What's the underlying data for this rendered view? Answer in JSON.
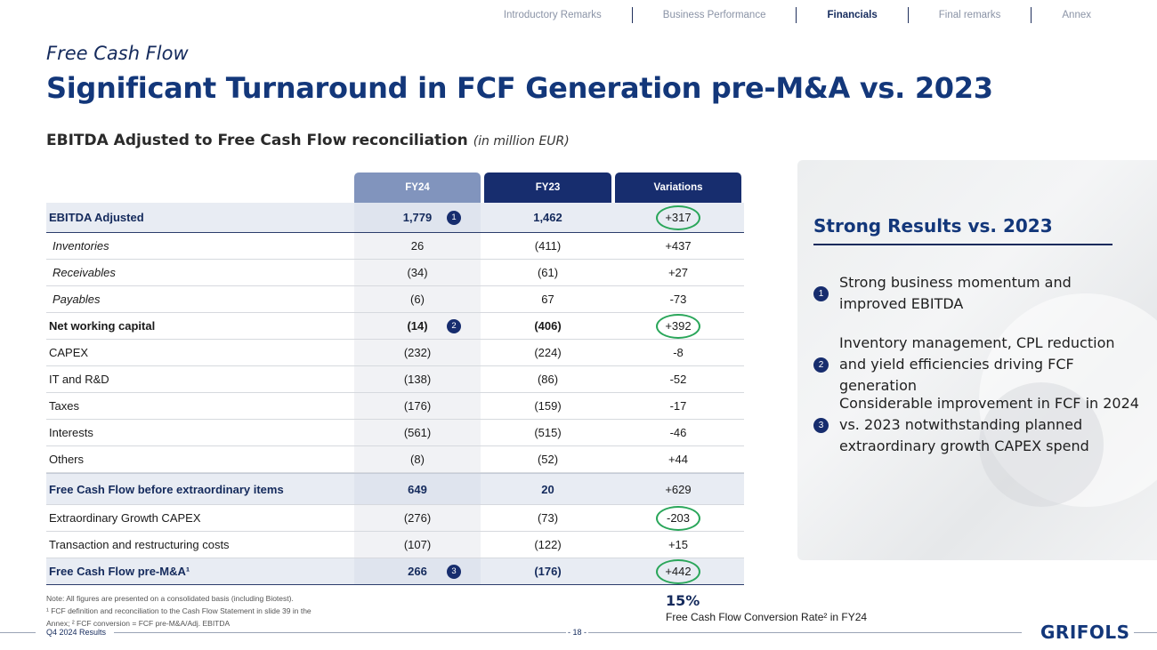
{
  "nav": {
    "items": [
      "Introductory Remarks",
      "Business Performance",
      "Financials",
      "Final remarks",
      "Annex"
    ],
    "active_index": 2
  },
  "subtitle": "Free Cash Flow",
  "title": "Significant Turnaround in FCF Generation pre-M&A vs. 2023",
  "table_heading": {
    "main": "EBITDA Adjusted to Free Cash Flow reconciliation",
    "unit": "(in million EUR)"
  },
  "table": {
    "columns": [
      "FY24",
      "FY23",
      "Variations"
    ],
    "rows": [
      {
        "label": "EBITDA Adjusted",
        "fy24": "1,779",
        "fy23": "1,462",
        "var": "+317",
        "badge": "1"
      },
      {
        "label": "Inventories",
        "fy24": "26",
        "fy23": "(411)",
        "var": "+437"
      },
      {
        "label": "Receivables",
        "fy24": "(34)",
        "fy23": "(61)",
        "var": "+27"
      },
      {
        "label": "Payables",
        "fy24": "(6)",
        "fy23": "67",
        "var": "-73"
      },
      {
        "label": "Net working capital",
        "fy24": "(14)",
        "fy23": "(406)",
        "var": "+392",
        "badge": "2"
      },
      {
        "label": "CAPEX",
        "fy24": "(232)",
        "fy23": "(224)",
        "var": "-8"
      },
      {
        "label": "IT and R&D",
        "fy24": "(138)",
        "fy23": "(86)",
        "var": "-52"
      },
      {
        "label": "Taxes",
        "fy24": "(176)",
        "fy23": "(159)",
        "var": "-17"
      },
      {
        "label": "Interests",
        "fy24": "(561)",
        "fy23": "(515)",
        "var": "-46"
      },
      {
        "label": "Others",
        "fy24": "(8)",
        "fy23": "(52)",
        "var": "+44"
      },
      {
        "label": "Free Cash Flow before extraordinary items",
        "fy24": "649",
        "fy23": "20",
        "var": "+629"
      },
      {
        "label": "Extraordinary Growth CAPEX",
        "fy24": "(276)",
        "fy23": "(73)",
        "var": "-203"
      },
      {
        "label": "Transaction and restructuring costs",
        "fy24": "(107)",
        "fy23": "(122)",
        "var": "+15"
      },
      {
        "label": "Free Cash Flow pre-M&A¹",
        "fy24": "266",
        "fy23": "(176)",
        "var": "+442",
        "badge": "3"
      }
    ]
  },
  "notes": [
    "Note: All figures are presented on a consolidated basis (including Biotest).",
    "¹ FCF definition and reconciliation to the Cash Flow Statement in slide 39 in the",
    "Annex; ² FCF conversion = FCF pre-M&A/Adj. EBITDA"
  ],
  "conversion": {
    "value": "15%",
    "caption": "Free Cash Flow Conversion Rate² in FY24"
  },
  "panel": {
    "title": "Strong Results vs. 2023",
    "items": [
      {
        "num": "1",
        "text": "Strong business momentum and improved EBITDA"
      },
      {
        "num": "2",
        "text": "Inventory management, CPL reduction and yield efficiencies driving FCF generation"
      },
      {
        "num": "3",
        "text": "Considerable improvement in FCF in 2024 vs. 2023 notwithstanding planned extraordinary growth CAPEX spend"
      }
    ]
  },
  "footer": {
    "left": "Q4 2024 Results",
    "page": "- 18 -",
    "logo": "GRIFOLS"
  },
  "colors": {
    "navy": "#142a5c",
    "title_blue": "#13377a",
    "header_light": "#8194bd",
    "header_dark": "#172d6e",
    "circle_green": "#2aa65a"
  }
}
